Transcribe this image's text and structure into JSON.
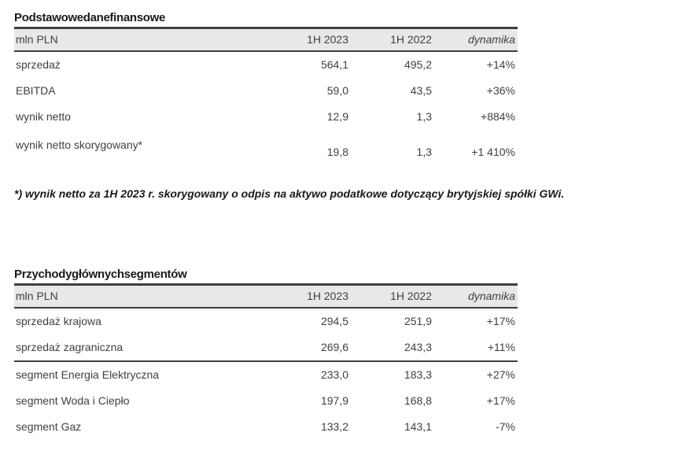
{
  "colors": {
    "page_bg": "#ffffff",
    "header_bg": "#e8e8e8",
    "rule_dark": "#3f3f3f",
    "body_text": "#404040",
    "title_text": "#1a1a1a"
  },
  "tables": [
    {
      "title": "Podstawowe dane finansowe",
      "unit_header": "mln PLN",
      "col_2023": "1H 2023",
      "col_2022": "1H 2022",
      "col_dyn": "dynamika",
      "rows": [
        {
          "label": "sprzedaż",
          "v2023": "564,1",
          "v2022": "495,2",
          "dyn": "+14%"
        },
        {
          "label": "EBITDA",
          "v2023": "59,0",
          "v2022": "43,5",
          "dyn": "+36%"
        },
        {
          "label": "wynik netto",
          "v2023": "12,9",
          "v2022": "1,3",
          "dyn": "+884%"
        },
        {
          "label": "wynik netto skorygowany*",
          "v2023": "19,8",
          "v2022": "1,3",
          "dyn": "+1 410%"
        }
      ]
    },
    {
      "title": "Przychody głównych segmentów",
      "unit_header": "mln PLN",
      "col_2023": "1H 2023",
      "col_2022": "1H 2022",
      "col_dyn": "dynamika",
      "rows": [
        {
          "label": "sprzedaż krajowa",
          "v2023": "294,5",
          "v2022": "251,9",
          "dyn": "+17%"
        },
        {
          "label": "sprzedaż zagraniczna",
          "v2023": "269,6",
          "v2022": "243,3",
          "dyn": "+11%"
        },
        {
          "label": "segment Energia Elektryczna",
          "v2023": "233,0",
          "v2022": "183,3",
          "dyn": "+27%"
        },
        {
          "label": "segment Woda i Ciepło",
          "v2023": "197,9",
          "v2022": "168,8",
          "dyn": "+17%"
        },
        {
          "label": "segment Gaz",
          "v2023": "133,2",
          "v2022": "143,1",
          "dyn": "-7%"
        }
      ]
    }
  ],
  "footnote": "*) wynik netto za 1H 2023 r. skorygowany o odpis na aktywo podatkowe dotyczący brytyjskiej spółki GWi."
}
